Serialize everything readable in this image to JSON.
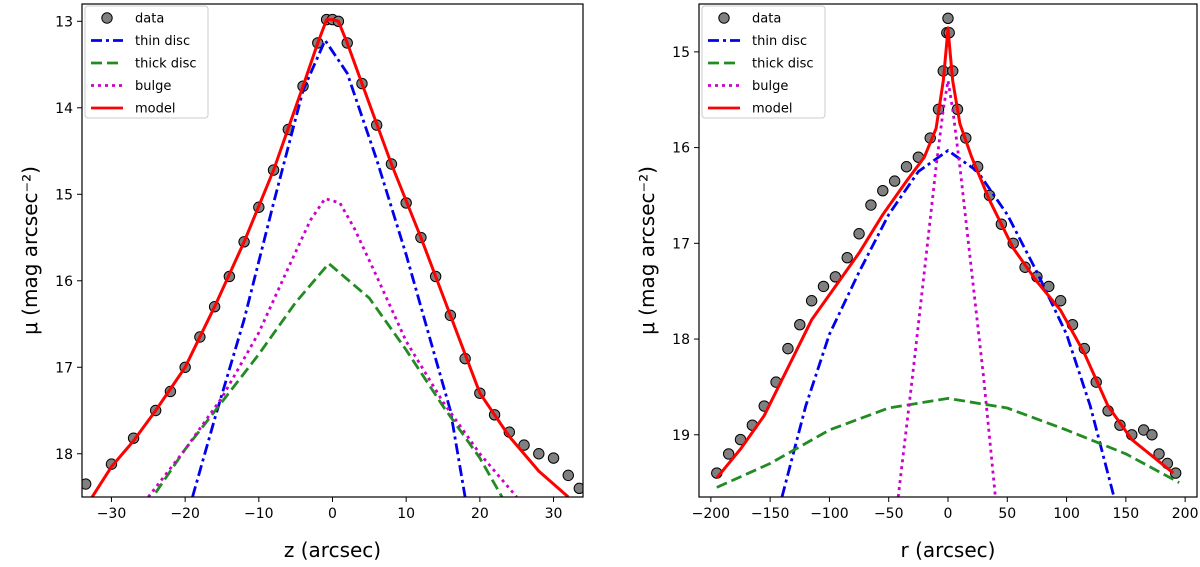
{
  "chart_data": [
    {
      "type": "line",
      "xlabel": "z (arcsec)",
      "ylabel": "μ (mag arcsec⁻²)",
      "xlim": [
        -34,
        34
      ],
      "ylim": [
        18.5,
        12.8
      ],
      "y_inverted": true,
      "xticks": [
        -30,
        -20,
        -10,
        0,
        10,
        20,
        30
      ],
      "yticks": [
        13,
        14,
        15,
        16,
        17,
        18
      ],
      "legend": {
        "position": "top-left",
        "entries": [
          "data",
          "thin disc",
          "thick disc",
          "bulge",
          "model"
        ]
      },
      "series": [
        {
          "name": "data",
          "style": "markers",
          "color": "#808080",
          "x": [
            -33.5,
            -30,
            -27,
            -24,
            -22,
            -20,
            -18,
            -16,
            -14,
            -12,
            -10,
            -8,
            -6,
            -4,
            -2,
            -0.8,
            0,
            0.8,
            2,
            4,
            6,
            8,
            10,
            12,
            14,
            16,
            18,
            20,
            22,
            24,
            26,
            28,
            30,
            32,
            33.5
          ],
          "y": [
            18.35,
            18.12,
            17.82,
            17.5,
            17.28,
            17.0,
            16.65,
            16.3,
            15.95,
            15.55,
            15.15,
            14.72,
            14.25,
            13.75,
            13.25,
            12.98,
            12.98,
            13.0,
            13.25,
            13.72,
            14.2,
            14.65,
            15.1,
            15.5,
            15.95,
            16.4,
            16.9,
            17.3,
            17.55,
            17.75,
            17.9,
            18.0,
            18.05,
            18.25,
            18.4
          ]
        },
        {
          "name": "thin disc",
          "style": "dashdot",
          "color": "#0000ee",
          "x": [
            -19,
            -16,
            -12,
            -8,
            -4,
            -1,
            2,
            6,
            10,
            14,
            16,
            18
          ],
          "y": [
            18.5,
            17.6,
            16.45,
            15.1,
            13.8,
            13.22,
            13.6,
            14.6,
            15.7,
            16.9,
            17.5,
            18.5
          ]
        },
        {
          "name": "thick disc",
          "style": "dashed",
          "color": "#228b22",
          "x": [
            -24,
            -20,
            -15,
            -10,
            -5,
            -0.5,
            5,
            10,
            15,
            20,
            23
          ],
          "y": [
            18.45,
            17.95,
            17.4,
            16.85,
            16.25,
            15.8,
            16.2,
            16.8,
            17.45,
            18.05,
            18.5
          ]
        },
        {
          "name": "bulge",
          "style": "dotted",
          "color": "#cc00cc",
          "x": [
            -25,
            -20,
            -15,
            -10,
            -6,
            -3,
            -1,
            1,
            3,
            6,
            10,
            15,
            20,
            25
          ],
          "y": [
            18.5,
            17.95,
            17.35,
            16.6,
            15.85,
            15.3,
            15.05,
            15.1,
            15.4,
            15.95,
            16.7,
            17.4,
            18.0,
            18.5
          ]
        },
        {
          "name": "model",
          "style": "solid",
          "color": "#ff0000",
          "x": [
            -33,
            -30,
            -27,
            -24,
            -20,
            -16,
            -12,
            -8,
            -4,
            -2,
            -0.8,
            0,
            0.8,
            2,
            4,
            8,
            12,
            16,
            20,
            24,
            28,
            32
          ],
          "y": [
            18.55,
            18.15,
            17.85,
            17.5,
            17.0,
            16.3,
            15.55,
            14.72,
            13.75,
            13.25,
            12.98,
            12.98,
            13.0,
            13.25,
            13.72,
            14.65,
            15.5,
            16.4,
            17.3,
            17.8,
            18.2,
            18.5
          ]
        }
      ]
    },
    {
      "type": "line",
      "xlabel": "r (arcsec)",
      "ylabel": "μ (mag arcsec⁻²)",
      "xlim": [
        -210,
        210
      ],
      "ylim": [
        19.65,
        14.5
      ],
      "y_inverted": true,
      "xticks": [
        -200,
        -150,
        -100,
        -50,
        0,
        50,
        100,
        150,
        200
      ],
      "yticks": [
        15,
        16,
        17,
        18,
        19
      ],
      "legend": {
        "position": "top-left",
        "entries": [
          "data",
          "thin disc",
          "thick disc",
          "bulge",
          "model"
        ]
      },
      "series": [
        {
          "name": "data",
          "style": "markers",
          "color": "#808080",
          "x": [
            -195,
            -185,
            -175,
            -165,
            -155,
            -145,
            -135,
            -125,
            -115,
            -105,
            -95,
            -85,
            -75,
            -65,
            -55,
            -45,
            -35,
            -25,
            -15,
            -8,
            -4,
            -1,
            0,
            1,
            4,
            8,
            15,
            25,
            35,
            45,
            55,
            65,
            75,
            85,
            95,
            105,
            115,
            125,
            135,
            145,
            155,
            165,
            172,
            178,
            185,
            192
          ],
          "y": [
            19.4,
            19.2,
            19.05,
            18.9,
            18.7,
            18.45,
            18.1,
            17.85,
            17.6,
            17.45,
            17.35,
            17.15,
            16.9,
            16.6,
            16.45,
            16.35,
            16.2,
            16.1,
            15.9,
            15.6,
            15.2,
            14.8,
            14.65,
            14.8,
            15.2,
            15.6,
            15.9,
            16.2,
            16.5,
            16.8,
            17.0,
            17.25,
            17.35,
            17.45,
            17.6,
            17.85,
            18.1,
            18.45,
            18.75,
            18.9,
            19.0,
            18.95,
            19.0,
            19.2,
            19.3,
            19.4
          ]
        },
        {
          "name": "thin disc",
          "style": "dashdot",
          "color": "#0000ee",
          "x": [
            -140,
            -120,
            -100,
            -75,
            -50,
            -25,
            0,
            25,
            50,
            75,
            100,
            120,
            140
          ],
          "y": [
            19.65,
            18.7,
            17.95,
            17.3,
            16.7,
            16.25,
            16.03,
            16.25,
            16.7,
            17.3,
            17.95,
            18.7,
            19.65
          ]
        },
        {
          "name": "thick disc",
          "style": "dashed",
          "color": "#228b22",
          "x": [
            -195,
            -150,
            -100,
            -50,
            0,
            50,
            100,
            150,
            195
          ],
          "y": [
            19.55,
            19.3,
            18.95,
            18.72,
            18.62,
            18.72,
            18.95,
            19.2,
            19.5
          ]
        },
        {
          "name": "bulge",
          "style": "dotted",
          "color": "#cc00cc",
          "x": [
            -42,
            -30,
            -20,
            -10,
            -4,
            0,
            4,
            10,
            20,
            30,
            40
          ],
          "y": [
            19.65,
            18.4,
            17.3,
            16.2,
            15.6,
            15.3,
            15.6,
            16.2,
            17.3,
            18.4,
            19.65
          ]
        },
        {
          "name": "model",
          "style": "solid",
          "color": "#ff0000",
          "x": [
            -195,
            -175,
            -155,
            -135,
            -115,
            -95,
            -75,
            -55,
            -35,
            -20,
            -10,
            -4,
            -1,
            0,
            1,
            4,
            10,
            20,
            35,
            55,
            75,
            95,
            115,
            135,
            155,
            175,
            190
          ],
          "y": [
            19.45,
            19.15,
            18.8,
            18.3,
            17.8,
            17.45,
            17.1,
            16.7,
            16.35,
            16.1,
            15.8,
            15.3,
            14.9,
            14.75,
            14.9,
            15.3,
            15.75,
            16.1,
            16.55,
            17.05,
            17.4,
            17.7,
            18.15,
            18.7,
            19.05,
            19.25,
            19.4
          ]
        }
      ]
    }
  ]
}
